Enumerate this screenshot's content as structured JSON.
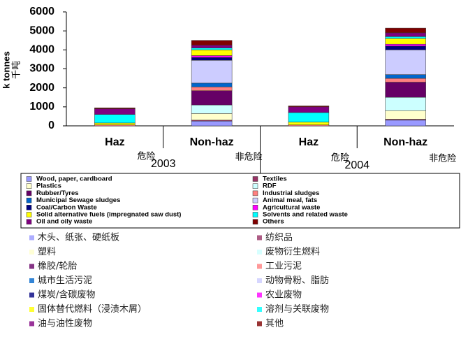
{
  "chart_data": {
    "type": "stacked_bar",
    "y_label": "k tonnes",
    "y_label_zh": "千吨",
    "categories": [
      "Haz",
      "Non-haz",
      "Haz",
      "Non-haz"
    ],
    "categories_zh": [
      "危险",
      "非危险",
      "危险",
      "非危险"
    ],
    "groups": [
      "2003",
      "2004"
    ],
    "ylim": [
      0,
      6000
    ],
    "yticks": [
      0,
      1000,
      2000,
      3000,
      4000,
      5000,
      6000
    ],
    "series": [
      {
        "name": "Wood, paper, cardboard",
        "name_zh": "木头、纸张、硬纸板",
        "color": "#9999ff",
        "values": [
          0,
          250,
          0,
          300
        ]
      },
      {
        "name": "Textiles",
        "name_zh": "纺织品",
        "color": "#993366",
        "values": [
          0,
          50,
          0,
          50
        ]
      },
      {
        "name": "Plastics",
        "name_zh": "塑料",
        "color": "#ffffcc",
        "values": [
          0,
          350,
          0,
          450
        ]
      },
      {
        "name": "RDF",
        "name_zh": "废物衍生燃料",
        "color": "#ccffff",
        "values": [
          0,
          450,
          0,
          700
        ]
      },
      {
        "name": "Rubber/Tyres",
        "name_zh": "橡胶/轮胎",
        "color": "#660066",
        "values": [
          0,
          750,
          0,
          800
        ]
      },
      {
        "name": "Industrial sludges",
        "name_zh": "工业污泥",
        "color": "#ff8080",
        "values": [
          50,
          200,
          50,
          200
        ]
      },
      {
        "name": "Municipal Sewage sludges",
        "name_zh": "城市生活污泥",
        "color": "#0066cc",
        "values": [
          0,
          200,
          0,
          200
        ]
      },
      {
        "name": "Animal meal, fats",
        "name_zh": "动物骨粉、脂肪",
        "color": "#ccccff",
        "values": [
          0,
          1200,
          0,
          1300
        ]
      },
      {
        "name": "Coal/Carbon Waste",
        "name_zh": "煤炭/含碳废物",
        "color": "#000080",
        "values": [
          0,
          150,
          0,
          200
        ]
      },
      {
        "name": "Agricultural waste",
        "name_zh": "农业废物",
        "color": "#ff00ff",
        "values": [
          0,
          100,
          0,
          100
        ]
      },
      {
        "name": "Solid alternative fuels (impregnated saw dust)",
        "name_zh": "固体替代燃料（浸渍木屑）",
        "color": "#ffff00",
        "values": [
          100,
          300,
          150,
          300
        ]
      },
      {
        "name": "Solvents and related waste",
        "name_zh": "溶剂与关联废物",
        "color": "#00ffff",
        "values": [
          450,
          100,
          500,
          100
        ]
      },
      {
        "name": "Oil and oily waste",
        "name_zh": "油与油性废物",
        "color": "#800080",
        "values": [
          300,
          150,
          300,
          200
        ]
      },
      {
        "name": "Others",
        "name_zh": "其他",
        "color": "#800000",
        "values": [
          50,
          250,
          50,
          250
        ]
      }
    ]
  }
}
